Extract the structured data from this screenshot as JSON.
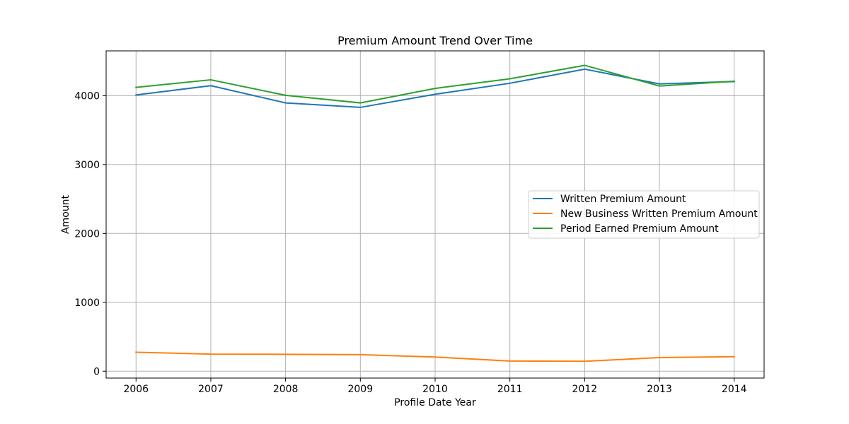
{
  "chart_data": {
    "type": "line",
    "title": "Premium Amount Trend Over Time",
    "xlabel": "Profile Date Year",
    "ylabel": "Amount",
    "x": [
      2006,
      2007,
      2008,
      2009,
      2010,
      2011,
      2012,
      2013,
      2014
    ],
    "xlim": [
      2005.6,
      2014.4
    ],
    "ylim": [
      -100,
      4650
    ],
    "yticks": [
      0,
      1000,
      2000,
      3000,
      4000
    ],
    "grid": true,
    "legend_position": "center-right",
    "series": [
      {
        "name": "Written Premium Amount",
        "color": "#1f77b4",
        "values": [
          4010,
          4145,
          3895,
          3830,
          4020,
          4180,
          4385,
          4170,
          4205
        ]
      },
      {
        "name": "New Business Written Premium Amount",
        "color": "#ff7f0e",
        "values": [
          275,
          248,
          245,
          240,
          205,
          148,
          143,
          198,
          210
        ]
      },
      {
        "name": "Period Earned Premium Amount",
        "color": "#2ca02c",
        "values": [
          4120,
          4230,
          4005,
          3895,
          4105,
          4245,
          4440,
          4140,
          4210
        ]
      }
    ]
  }
}
